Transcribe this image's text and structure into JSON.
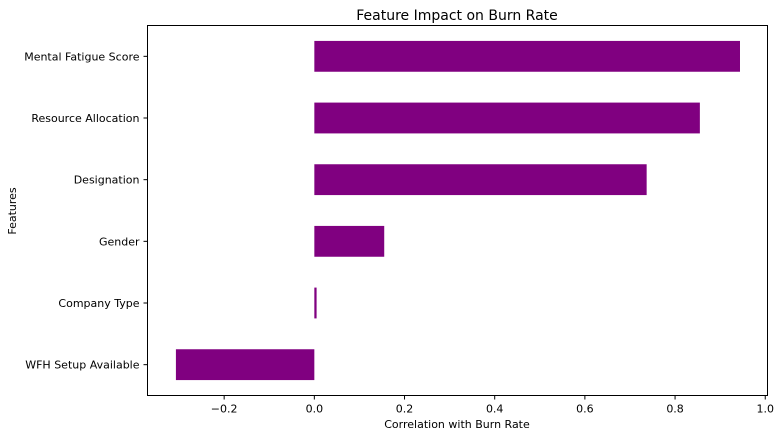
{
  "chart_data": {
    "type": "bar",
    "orientation": "horizontal",
    "title": "Feature Impact on Burn Rate",
    "xlabel": "Correlation with Burn Rate",
    "ylabel": "Features",
    "categories": [
      "Mental Fatigue Score",
      "Resource Allocation",
      "Designation",
      "Gender",
      "Company Type",
      "WFH Setup Available"
    ],
    "values": [
      0.944,
      0.855,
      0.737,
      0.155,
      0.005,
      -0.307
    ],
    "xlim": [
      -0.37,
      1.005
    ],
    "xticks": [
      -0.2,
      0.0,
      0.2,
      0.4,
      0.6,
      0.8,
      1.0
    ],
    "xtick_labels": [
      "−0.2",
      "0.0",
      "0.2",
      "0.4",
      "0.6",
      "0.8",
      "1.0"
    ],
    "bar_color": "#800080",
    "grid": false,
    "legend": "none"
  }
}
